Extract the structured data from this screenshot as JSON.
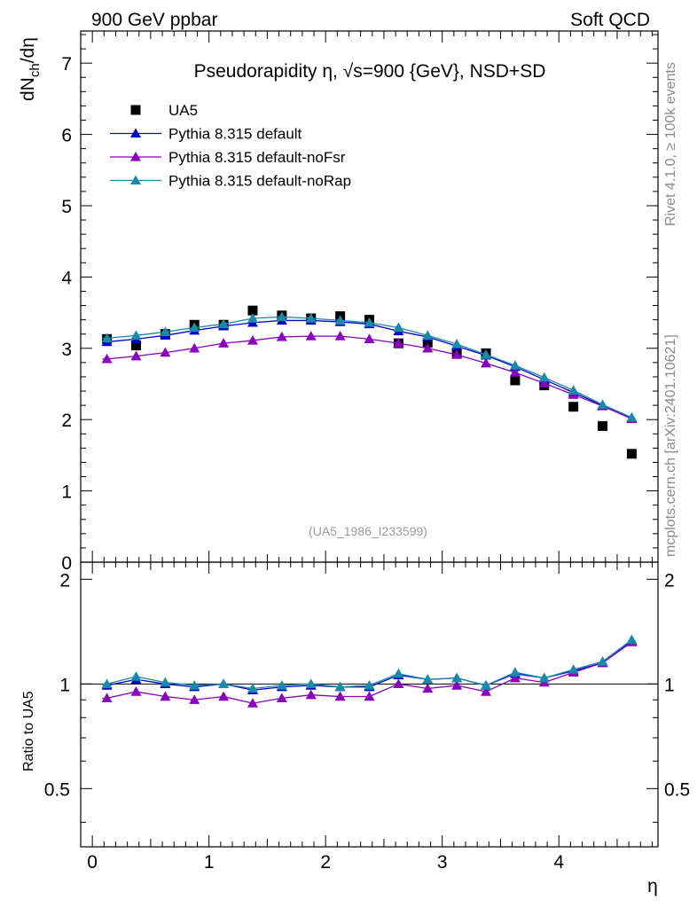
{
  "header": {
    "left": "900 GeV ppbar",
    "right": "Soft QCD"
  },
  "side_text": {
    "top": "Rivet 4.1.0, ≥ 100k events",
    "bottom": "mcplots.cern.ch [arXiv:2401.10621]"
  },
  "reference": "(UA5_1986_I233599)",
  "colors": {
    "ua5": "#000000",
    "default": "#0000cc",
    "noFsr": "#8800bb",
    "noRap": "#1a8aaa"
  },
  "chart_data": [
    {
      "type": "scatter",
      "title": "Pseudorapidity η, √s=900 {GeV}, NSD+SD",
      "ylabel": "dN_ch/dη",
      "xlabel": "η",
      "xlim": [
        -0.1,
        4.85
      ],
      "ylim": [
        0,
        7.45
      ],
      "yticks": [
        0,
        1,
        2,
        3,
        4,
        5,
        6,
        7
      ],
      "legend_position": "top-left",
      "x": [
        0.125,
        0.375,
        0.625,
        0.875,
        1.125,
        1.375,
        1.625,
        1.875,
        2.125,
        2.375,
        2.625,
        2.875,
        3.125,
        3.375,
        3.625,
        3.875,
        4.125,
        4.375,
        4.625
      ],
      "series": [
        {
          "name": "UA5",
          "marker": "square",
          "values": [
            3.13,
            3.04,
            3.2,
            3.33,
            3.33,
            3.53,
            3.46,
            3.42,
            3.45,
            3.4,
            3.07,
            3.08,
            2.93,
            2.93,
            2.55,
            2.48,
            2.18,
            1.91,
            1.52
          ]
        },
        {
          "name": "Pythia 8.315 default",
          "marker": "triangle",
          "values": [
            3.09,
            3.13,
            3.18,
            3.25,
            3.31,
            3.36,
            3.39,
            3.39,
            3.37,
            3.34,
            3.24,
            3.16,
            3.03,
            2.9,
            2.74,
            2.56,
            2.38,
            2.2,
            2.02
          ]
        },
        {
          "name": "Pythia 8.315 default-noFsr",
          "marker": "triangle",
          "values": [
            2.85,
            2.89,
            2.94,
            3.0,
            3.07,
            3.11,
            3.16,
            3.17,
            3.17,
            3.13,
            3.07,
            3.0,
            2.91,
            2.79,
            2.66,
            2.51,
            2.35,
            2.19,
            2.01
          ]
        },
        {
          "name": "Pythia 8.315 default-noRap",
          "marker": "triangle",
          "values": [
            3.14,
            3.18,
            3.23,
            3.29,
            3.34,
            3.42,
            3.44,
            3.42,
            3.39,
            3.36,
            3.29,
            3.18,
            3.06,
            2.91,
            2.76,
            2.59,
            2.41,
            2.21,
            2.03
          ]
        }
      ]
    },
    {
      "type": "line",
      "ylabel": "Ratio to UA5",
      "xlabel": "η",
      "xlim": [
        -0.1,
        4.85
      ],
      "ylim": [
        0.34,
        2.24
      ],
      "yticks": [
        0.5,
        1,
        2
      ],
      "xticks": [
        0,
        1,
        2,
        3,
        4
      ],
      "reference_line": 1,
      "x": [
        0.125,
        0.375,
        0.625,
        0.875,
        1.125,
        1.375,
        1.625,
        1.875,
        2.125,
        2.375,
        2.625,
        2.875,
        3.125,
        3.375,
        3.625,
        3.875,
        4.125,
        4.375,
        4.625
      ],
      "series": [
        {
          "name": "Pythia 8.315 default",
          "values": [
            0.99,
            1.03,
            1.0,
            0.98,
            1.0,
            0.96,
            0.98,
            0.99,
            0.98,
            0.98,
            1.06,
            1.03,
            1.04,
            0.99,
            1.07,
            1.04,
            1.09,
            1.15,
            1.33
          ]
        },
        {
          "name": "Pythia 8.315 default-noFsr",
          "values": [
            0.91,
            0.95,
            0.92,
            0.9,
            0.92,
            0.88,
            0.91,
            0.93,
            0.92,
            0.92,
            1.0,
            0.97,
            0.99,
            0.95,
            1.04,
            1.01,
            1.08,
            1.15,
            1.32
          ]
        },
        {
          "name": "Pythia 8.315 default-noRap",
          "values": [
            1.0,
            1.05,
            1.01,
            0.99,
            1.0,
            0.97,
            0.99,
            1.0,
            0.98,
            0.99,
            1.07,
            1.03,
            1.04,
            0.99,
            1.08,
            1.04,
            1.1,
            1.16,
            1.34
          ]
        }
      ]
    }
  ]
}
